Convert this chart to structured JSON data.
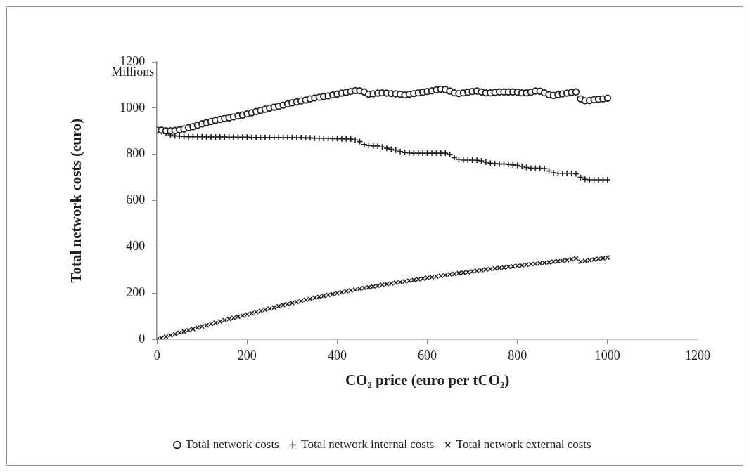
{
  "chart_data": {
    "type": "scatter",
    "xlabel": "CO₂ price (euro per tCO₂)",
    "ylabel": "Total network costs (euro)",
    "annotations": [
      "Millions"
    ],
    "x": [
      0,
      10,
      20,
      30,
      40,
      50,
      60,
      70,
      80,
      90,
      100,
      110,
      120,
      130,
      140,
      150,
      160,
      170,
      180,
      190,
      200,
      210,
      220,
      230,
      240,
      250,
      260,
      270,
      280,
      290,
      300,
      310,
      320,
      330,
      340,
      350,
      360,
      370,
      380,
      390,
      400,
      410,
      420,
      430,
      440,
      450,
      460,
      470,
      480,
      490,
      500,
      510,
      520,
      530,
      540,
      550,
      560,
      570,
      580,
      590,
      600,
      610,
      620,
      630,
      640,
      650,
      660,
      670,
      680,
      690,
      700,
      710,
      720,
      730,
      740,
      750,
      760,
      770,
      780,
      790,
      800,
      810,
      820,
      830,
      840,
      850,
      860,
      870,
      880,
      890,
      900,
      910,
      920,
      930,
      940,
      950,
      960,
      970,
      980,
      990,
      1000
    ],
    "series": [
      {
        "name": "Total network costs",
        "color": "#231f20",
        "marker": "circle",
        "values": [
          905,
          905,
          902,
          902,
          903,
          906,
          910,
          915,
          920,
          926,
          932,
          937,
          942,
          947,
          951,
          955,
          958,
          962,
          966,
          970,
          975,
          980,
          985,
          990,
          995,
          1000,
          1004,
          1008,
          1013,
          1018,
          1023,
          1027,
          1031,
          1035,
          1040,
          1044,
          1047,
          1050,
          1053,
          1057,
          1061,
          1065,
          1068,
          1072,
          1076,
          1075,
          1070,
          1060,
          1062,
          1065,
          1066,
          1065,
          1063,
          1062,
          1060,
          1057,
          1060,
          1063,
          1066,
          1069,
          1072,
          1075,
          1079,
          1082,
          1080,
          1074,
          1066,
          1063,
          1066,
          1069,
          1072,
          1074,
          1070,
          1066,
          1066,
          1068,
          1070,
          1070,
          1070,
          1070,
          1069,
          1066,
          1066,
          1069,
          1074,
          1073,
          1066,
          1058,
          1055,
          1058,
          1062,
          1065,
          1068,
          1070,
          1040,
          1032,
          1033,
          1036,
          1038,
          1040,
          1043
        ]
      },
      {
        "name": "Total network internal costs",
        "color": "#231f20",
        "marker": "cross",
        "values": [
          905,
          898,
          890,
          884,
          880,
          878,
          877,
          876,
          876,
          876,
          876,
          875,
          875,
          875,
          875,
          875,
          874,
          874,
          874,
          874,
          874,
          873,
          873,
          873,
          873,
          873,
          873,
          873,
          873,
          873,
          873,
          872,
          872,
          871,
          871,
          870,
          870,
          869,
          869,
          868,
          868,
          867,
          867,
          866,
          862,
          855,
          842,
          838,
          836,
          836,
          832,
          826,
          822,
          818,
          812,
          808,
          806,
          805,
          805,
          805,
          805,
          805,
          805,
          805,
          805,
          800,
          786,
          778,
          775,
          775,
          775,
          774,
          772,
          766,
          762,
          760,
          758,
          758,
          756,
          754,
          752,
          748,
          743,
          740,
          740,
          740,
          738,
          728,
          720,
          718,
          718,
          718,
          718,
          716,
          700,
          692,
          690,
          690,
          690,
          690,
          690
        ]
      },
      {
        "name": "Total network external costs",
        "color": "#231f20",
        "marker": "cross",
        "values": [
          0,
          6,
          12,
          18,
          23,
          29,
          34,
          40,
          45,
          51,
          56,
          61,
          67,
          72,
          77,
          83,
          88,
          93,
          98,
          103,
          108,
          113,
          118,
          123,
          128,
          133,
          138,
          143,
          148,
          153,
          157,
          162,
          166,
          171,
          175,
          180,
          184,
          188,
          192,
          196,
          200,
          204,
          208,
          211,
          215,
          218,
          222,
          225,
          229,
          232,
          236,
          239,
          242,
          245,
          248,
          251,
          254,
          257,
          260,
          263,
          266,
          269,
          272,
          275,
          278,
          281,
          283,
          286,
          289,
          291,
          294,
          297,
          299,
          302,
          304,
          307,
          309,
          311,
          314,
          316,
          318,
          320,
          323,
          325,
          327,
          329,
          331,
          333,
          336,
          338,
          340,
          343,
          346,
          350,
          336,
          339,
          342,
          345,
          348,
          351,
          354
        ]
      }
    ],
    "xlim": [
      0,
      1200
    ],
    "xticks": [
      0,
      200,
      400,
      600,
      800,
      1000,
      1200
    ],
    "ylim": [
      0,
      1200
    ],
    "yticks": [
      0,
      200,
      400,
      600,
      800,
      1000,
      1200
    ],
    "grid": false,
    "legend": "bottom"
  }
}
